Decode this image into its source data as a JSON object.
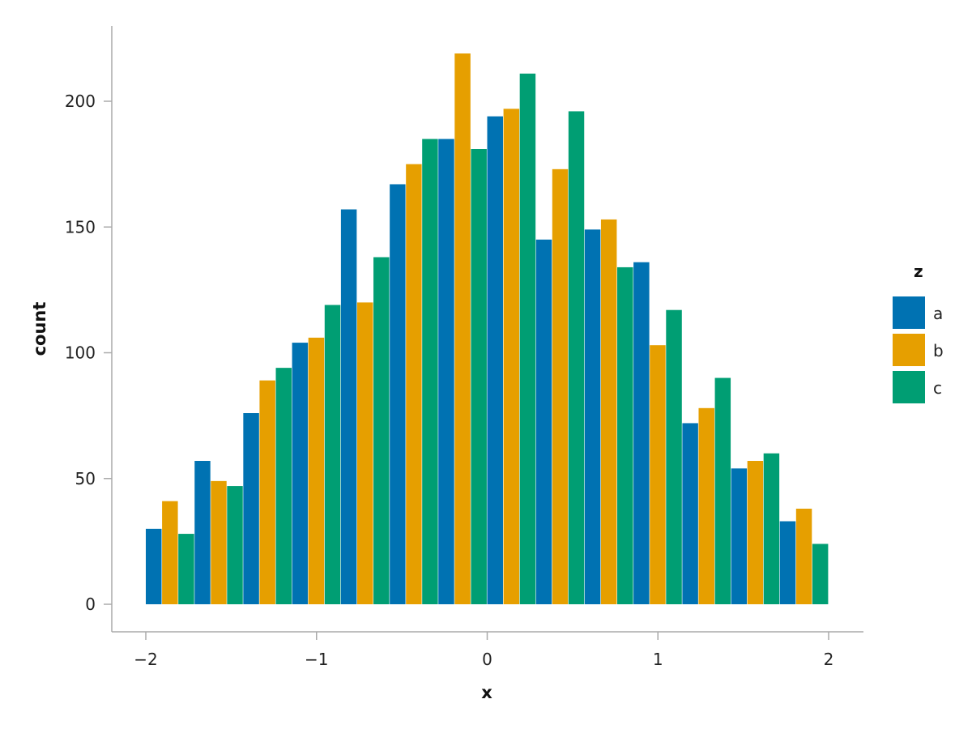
{
  "chart_data": {
    "type": "bar",
    "subtype": "histogram-dodged",
    "x_bin_edges": [
      -2.0,
      -1.714,
      -1.429,
      -1.143,
      -0.857,
      -0.571,
      -0.286,
      0.0,
      0.286,
      0.571,
      0.857,
      1.143,
      1.429,
      1.714,
      2.0
    ],
    "series": [
      {
        "name": "a",
        "color": "#0072B2",
        "values": [
          30,
          57,
          76,
          104,
          157,
          167,
          185,
          194,
          145,
          149,
          136,
          72,
          54,
          33
        ]
      },
      {
        "name": "b",
        "color": "#E69F00",
        "values": [
          41,
          49,
          89,
          106,
          120,
          175,
          219,
          197,
          173,
          153,
          103,
          78,
          57,
          38
        ]
      },
      {
        "name": "c",
        "color": "#009E73",
        "values": [
          28,
          47,
          94,
          119,
          138,
          185,
          181,
          211,
          196,
          134,
          117,
          90,
          60,
          24
        ]
      }
    ],
    "xlabel": "x",
    "ylabel": "count",
    "xlim": [
      -2.2,
      2.2
    ],
    "ylim": [
      -10,
      230
    ],
    "xticks": [
      -2,
      -1,
      0,
      1,
      2
    ],
    "xtick_labels": [
      "−2",
      "−1",
      "0",
      "1",
      "2"
    ],
    "yticks": [
      0,
      50,
      100,
      150,
      200
    ],
    "ytick_labels": [
      "0",
      "50",
      "100",
      "150",
      "200"
    ],
    "grid": false,
    "legend": {
      "title": "z",
      "position": "right",
      "entries": [
        "a",
        "b",
        "c"
      ]
    }
  }
}
